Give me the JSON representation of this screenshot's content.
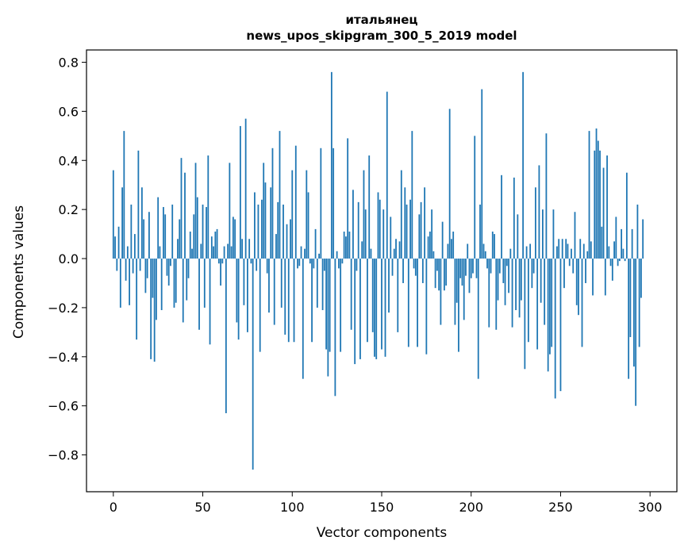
{
  "chart_data": {
    "type": "bar",
    "title": "итальянец",
    "subtitle": "news_upos_skipgram_300_5_2019 model",
    "xlabel": "Vector components",
    "ylabel": "Components values",
    "xlim": [
      -15,
      315
    ],
    "ylim": [
      -0.95,
      0.85
    ],
    "xticks": [
      0,
      50,
      100,
      150,
      200,
      250,
      300
    ],
    "yticks": [
      -0.8,
      -0.6,
      -0.4,
      -0.2,
      0.0,
      0.2,
      0.4,
      0.6,
      0.8
    ],
    "ytick_labels": [
      "−0.8",
      "−0.6",
      "−0.4",
      "−0.2",
      "0.0",
      "0.2",
      "0.4",
      "0.6",
      "0.8"
    ],
    "xtick_labels": [
      "0",
      "50",
      "100",
      "150",
      "200",
      "250",
      "300"
    ],
    "bar_color": "#1f77b4",
    "grid": false,
    "legend": "none",
    "values": [
      0.36,
      0.09,
      -0.05,
      0.13,
      -0.2,
      0.29,
      0.52,
      -0.09,
      0.05,
      -0.19,
      0.22,
      -0.06,
      0.1,
      -0.33,
      0.44,
      -0.05,
      0.29,
      0.16,
      -0.14,
      -0.08,
      0.19,
      -0.41,
      -0.16,
      -0.42,
      -0.25,
      0.25,
      0.05,
      -0.21,
      0.21,
      0.18,
      -0.07,
      -0.11,
      -0.03,
      0.22,
      -0.2,
      -0.18,
      0.08,
      0.16,
      0.41,
      -0.26,
      0.35,
      -0.17,
      -0.08,
      0.11,
      0.04,
      0.18,
      0.39,
      0.25,
      -0.29,
      0.06,
      0.22,
      -0.2,
      0.21,
      0.42,
      -0.35,
      0.09,
      0.05,
      0.11,
      0.12,
      -0.02,
      -0.11,
      -0.02,
      0.05,
      -0.63,
      0.06,
      0.39,
      0.05,
      0.17,
      0.16,
      -0.26,
      -0.33,
      0.54,
      0.08,
      -0.19,
      0.57,
      -0.3,
      0.08,
      -0.02,
      -0.86,
      0.27,
      -0.05,
      0.22,
      -0.38,
      0.24,
      0.39,
      0.31,
      -0.06,
      -0.22,
      0.29,
      0.45,
      -0.27,
      0.1,
      0.23,
      0.52,
      -0.2,
      0.22,
      -0.31,
      0.14,
      -0.34,
      0.16,
      0.36,
      -0.34,
      0.46,
      -0.04,
      -0.03,
      0.05,
      -0.49,
      0.04,
      0.36,
      0.27,
      -0.02,
      -0.34,
      -0.04,
      0.12,
      -0.2,
      0.02,
      0.45,
      -0.21,
      -0.05,
      -0.37,
      -0.48,
      -0.38,
      0.76,
      0.45,
      -0.56,
      0.03,
      -0.04,
      -0.38,
      -0.02,
      0.11,
      0.09,
      0.49,
      0.11,
      -0.29,
      0.28,
      -0.43,
      -0.05,
      0.23,
      -0.41,
      0.07,
      0.36,
      0.2,
      -0.34,
      0.42,
      0.04,
      -0.3,
      -0.4,
      -0.41,
      0.27,
      0.24,
      -0.37,
      0.2,
      -0.4,
      0.68,
      -0.22,
      0.17,
      -0.07,
      0.04,
      0.08,
      -0.3,
      0.07,
      0.36,
      -0.1,
      0.29,
      0.22,
      -0.36,
      0.24,
      0.52,
      -0.04,
      -0.07,
      -0.36,
      0.18,
      0.23,
      -0.1,
      0.29,
      -0.39,
      0.09,
      0.11,
      0.2,
      0.03,
      -0.12,
      -0.05,
      -0.13,
      -0.27,
      0.15,
      -0.13,
      -0.11,
      0.06,
      0.61,
      0.08,
      0.11,
      -0.27,
      -0.18,
      -0.38,
      -0.08,
      -0.11,
      -0.25,
      -0.07,
      0.06,
      -0.14,
      -0.08,
      -0.06,
      0.5,
      -0.08,
      -0.49,
      0.22,
      0.69,
      0.06,
      0.03,
      -0.04,
      -0.28,
      -0.06,
      0.11,
      0.1,
      -0.29,
      -0.17,
      -0.06,
      0.34,
      -0.1,
      -0.19,
      -0.03,
      -0.14,
      0.04,
      -0.28,
      0.33,
      -0.21,
      0.18,
      -0.24,
      -0.17,
      0.76,
      -0.45,
      0.05,
      -0.34,
      0.06,
      -0.12,
      -0.06,
      0.29,
      -0.37,
      0.38,
      -0.18,
      0.2,
      -0.27,
      0.51,
      -0.46,
      -0.39,
      -0.36,
      0.2,
      -0.57,
      0.05,
      0.08,
      -0.54,
      0.08,
      -0.12,
      0.08,
      0.06,
      -0.03,
      0.04,
      -0.06,
      0.19,
      -0.19,
      -0.23,
      0.08,
      -0.36,
      0.06,
      -0.1,
      0.03,
      0.52,
      0.07,
      -0.15,
      0.44,
      0.53,
      0.48,
      0.44,
      0.13,
      0.37,
      -0.15,
      0.42,
      0.05,
      -0.03,
      -0.09,
      0.07,
      0.17,
      -0.03,
      -0.01,
      0.12,
      0.04,
      -0.01,
      0.35,
      -0.49,
      -0.32,
      0.12,
      -0.44,
      -0.6,
      0.22,
      -0.36,
      -0.16,
      0.16
    ]
  }
}
